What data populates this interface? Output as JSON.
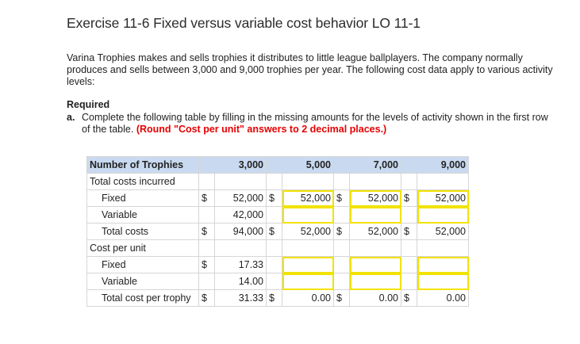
{
  "title": "Exercise 11-6 Fixed versus variable cost behavior LO 11-1",
  "intro": "Varina Trophies makes and sells trophies it distributes to little league ballplayers. The company normally produces and sells between 3,000 and 9,000 trophies per year. The following cost data apply to various activity levels:",
  "required": {
    "heading": "Required",
    "letter": "a.",
    "text": "Complete the following table by filling in the missing amounts for the levels of activity shown in the first row of the table.",
    "note": "(Round \"Cost per unit\" answers to 2 decimal places.)"
  },
  "table": {
    "header": {
      "label": "Number of Trophies",
      "levels": [
        "3,000",
        "5,000",
        "7,000",
        "9,000"
      ]
    },
    "rows": [
      {
        "label": "Total costs incurred",
        "type": "section",
        "currency": [
          "",
          "",
          "",
          ""
        ],
        "values": [
          "",
          "",
          "",
          ""
        ]
      },
      {
        "label": "Fixed",
        "type": "item",
        "currency": [
          "$",
          "$",
          "$",
          "$"
        ],
        "values": [
          "52,000",
          "52,000",
          "52,000",
          "52,000"
        ]
      },
      {
        "label": "Variable",
        "type": "item",
        "currency": [
          "",
          "",
          "",
          ""
        ],
        "values": [
          "42,000",
          "",
          "",
          ""
        ]
      },
      {
        "label": "Total costs",
        "type": "item",
        "currency": [
          "$",
          "$",
          "$",
          "$"
        ],
        "values": [
          "94,000",
          "52,000",
          "52,000",
          "52,000"
        ]
      },
      {
        "label": "Cost per unit",
        "type": "section",
        "currency": [
          "",
          "",
          "",
          ""
        ],
        "values": [
          "",
          "",
          "",
          ""
        ]
      },
      {
        "label": "Fixed",
        "type": "item",
        "currency": [
          "$",
          "",
          "",
          ""
        ],
        "values": [
          "17.33",
          "",
          "",
          ""
        ]
      },
      {
        "label": "Variable",
        "type": "item",
        "currency": [
          "",
          "",
          "",
          ""
        ],
        "values": [
          "14.00",
          "",
          "",
          ""
        ]
      },
      {
        "label": "Total cost per trophy",
        "type": "item",
        "currency": [
          "$",
          "$",
          "$",
          "$"
        ],
        "values": [
          "31.33",
          "0.00",
          "0.00",
          "0.00"
        ]
      }
    ]
  },
  "colors": {
    "header_bg": "#c9daf0",
    "input_border": "#f2e200",
    "note_red": "#e60000"
  }
}
